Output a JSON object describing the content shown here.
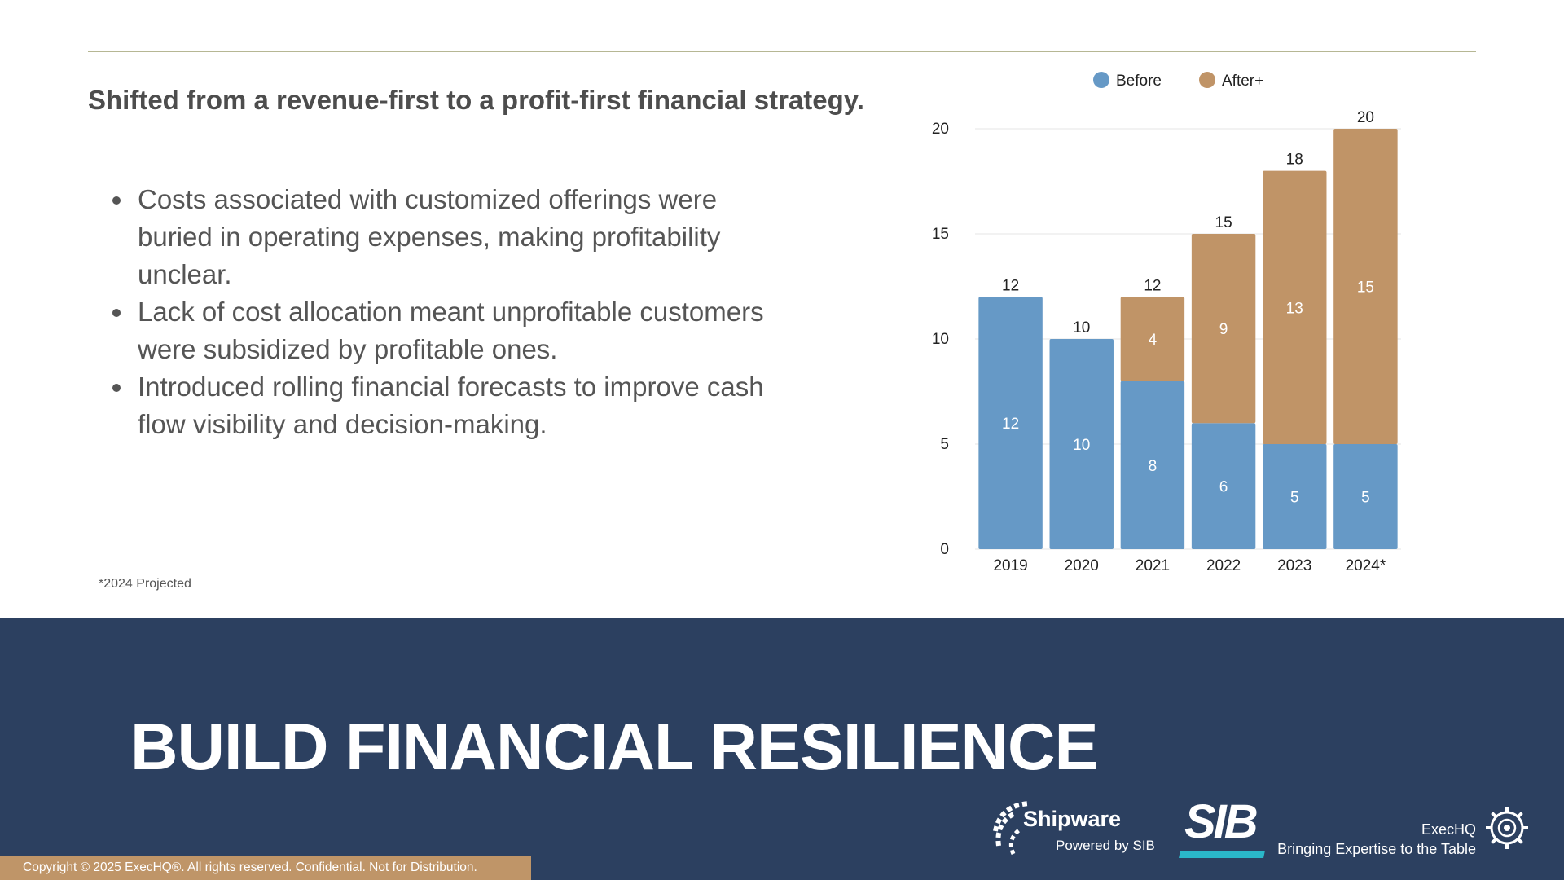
{
  "headline": "Shifted from a revenue-first to a profit-first financial strategy.",
  "bullets": [
    "Costs associated with customized offerings were buried in operating expenses, making profitability unclear.",
    "Lack of cost allocation meant unprofitable customers were subsidized by profitable ones.",
    "Introduced rolling financial forecasts to improve cash flow visibility and decision-making."
  ],
  "footnote": "*2024 Projected",
  "banner": {
    "title": "BUILD FINANCIAL RESILIENCE",
    "copyright": "Copyright © 2025 ExecHQ®. All rights reserved. Confidential. Not for Distribution."
  },
  "logos": {
    "shipware_name": "Shipware",
    "shipware_sub": "Powered by SIB",
    "sib": "SIB",
    "exechq_name": "ExecHQ",
    "exechq_tagline": "Bringing Expertise to the Table"
  },
  "colors": {
    "before": "#6699c6",
    "after": "#c09467",
    "banner": "#2c4060",
    "rule": "#b6b794",
    "copyright_bar": "#bf9568",
    "sib_accent": "#2ab7c9"
  },
  "chart_data": {
    "type": "bar",
    "stacked": true,
    "categories": [
      "2019",
      "2020",
      "2021",
      "2022",
      "2023",
      "2024*"
    ],
    "series": [
      {
        "name": "Before",
        "values": [
          12,
          10,
          8,
          6,
          5,
          5
        ]
      },
      {
        "name": "After+",
        "values": [
          0,
          0,
          4,
          9,
          13,
          15
        ]
      }
    ],
    "totals": [
      12,
      10,
      12,
      15,
      18,
      20
    ],
    "ylim": [
      0,
      20
    ],
    "yticks": [
      0,
      5,
      10,
      15,
      20
    ],
    "grid": true,
    "legend": "top-center",
    "title": "",
    "xlabel": "",
    "ylabel": ""
  }
}
